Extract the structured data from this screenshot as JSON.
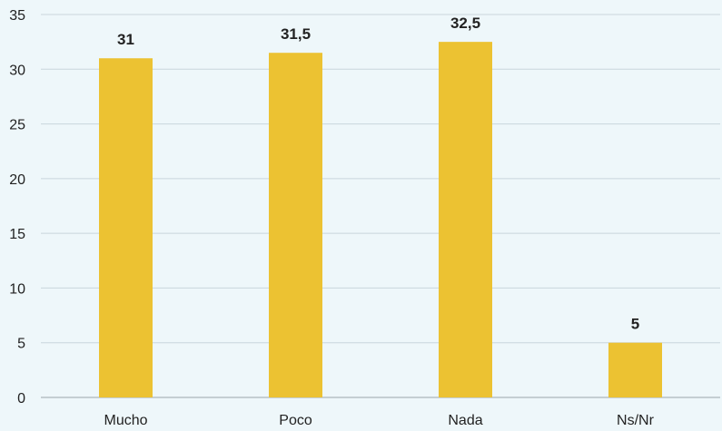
{
  "chart_data": {
    "type": "bar",
    "categories": [
      "Mucho",
      "Poco",
      "Nada",
      "Ns/Nr"
    ],
    "values": [
      31,
      31.5,
      32.5,
      5
    ],
    "data_labels": [
      "31",
      "31,5",
      "32,5",
      "5"
    ],
    "ylim": [
      0,
      35
    ],
    "yticks": [
      0,
      5,
      10,
      15,
      20,
      25,
      30,
      35
    ],
    "grid": true,
    "legend": "none",
    "colors": {
      "bar": "#ecc232",
      "background": "#eef7fa",
      "grid": "#c9d6dc"
    }
  }
}
